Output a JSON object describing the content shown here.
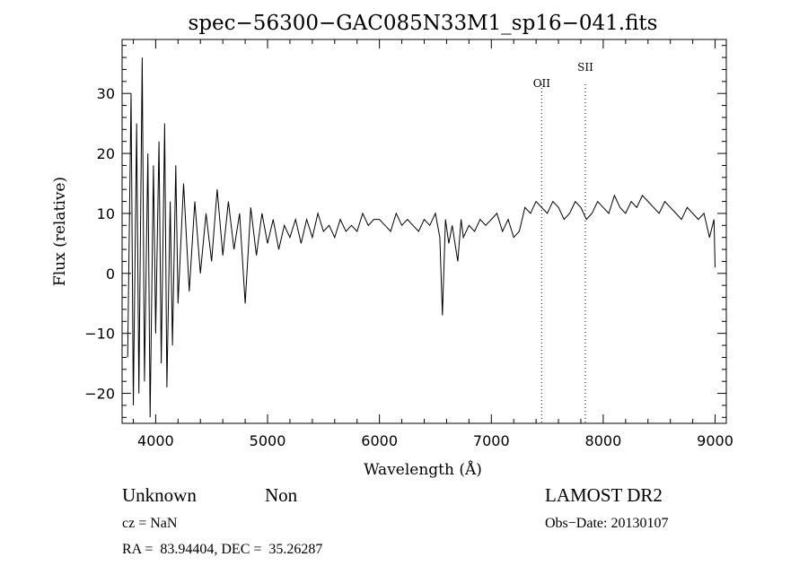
{
  "chart_data": {
    "type": "line",
    "title": "spec−56300−GAC085N33M1_sp16−041.fits",
    "xlabel": "Wavelength (Å)",
    "ylabel": "Flux (relative)",
    "xlim": [
      3700,
      9100
    ],
    "ylim": [
      -25,
      39
    ],
    "xticks": [
      4000,
      5000,
      6000,
      7000,
      8000,
      9000
    ],
    "xtick_labels": [
      "4000",
      "5000",
      "6000",
      "7000",
      "8000",
      "9000"
    ],
    "yticks": [
      -20,
      -10,
      0,
      10,
      20,
      30
    ],
    "ytick_labels": [
      "−20",
      "−10",
      "0",
      "10",
      "20",
      "30"
    ],
    "grid": false,
    "series": [
      {
        "x": [
          3750,
          3780,
          3800,
          3830,
          3850,
          3880,
          3900,
          3930,
          3950,
          3980,
          4000,
          4030,
          4050,
          4080,
          4100,
          4130,
          4150,
          4180,
          4200,
          4250,
          4300,
          4350,
          4400,
          4450,
          4500,
          4550,
          4600,
          4650,
          4700,
          4750,
          4800,
          4850,
          4900,
          4950,
          5000,
          5050,
          5100,
          5150,
          5200,
          5250,
          5300,
          5350,
          5400,
          5450,
          5500,
          5550,
          5600,
          5650,
          5700,
          5750,
          5800,
          5850,
          5900,
          5950,
          6000,
          6050,
          6100,
          6150,
          6200,
          6250,
          6300,
          6350,
          6400,
          6450,
          6500,
          6540,
          6563,
          6590,
          6620,
          6650,
          6700,
          6730,
          6750,
          6800,
          6850,
          6900,
          6950,
          7000,
          7050,
          7100,
          7150,
          7200,
          7250,
          7300,
          7350,
          7400,
          7450,
          7500,
          7550,
          7600,
          7650,
          7700,
          7750,
          7800,
          7850,
          7900,
          7950,
          8000,
          8050,
          8100,
          8150,
          8200,
          8250,
          8300,
          8350,
          8400,
          8450,
          8500,
          8550,
          8600,
          8650,
          8700,
          8750,
          8800,
          8850,
          8900,
          8950,
          8990,
          9000
        ],
        "y": [
          -14,
          30,
          -22,
          25,
          -20,
          36,
          -18,
          20,
          -24,
          18,
          -10,
          22,
          -15,
          25,
          -19,
          12,
          -12,
          18,
          -5,
          15,
          -3,
          12,
          0,
          10,
          2,
          14,
          3,
          12,
          4,
          10,
          -5,
          11,
          3,
          10,
          5,
          9,
          4,
          8,
          6,
          9,
          5,
          9,
          6,
          10,
          7,
          8,
          6,
          9,
          7,
          8,
          7,
          10,
          8,
          9,
          9,
          8,
          7,
          10,
          8,
          9,
          8,
          7,
          9,
          8,
          10,
          6,
          -7,
          9,
          5,
          8,
          2,
          9,
          6,
          8,
          7,
          9,
          8,
          9,
          10,
          7,
          9,
          6,
          7,
          11,
          10,
          12,
          11,
          10,
          12,
          11,
          9,
          10,
          12,
          11,
          9,
          10,
          12,
          11,
          10,
          13,
          11,
          10,
          12,
          11,
          13,
          12,
          11,
          10,
          12,
          11,
          10,
          9,
          11,
          10,
          9,
          10,
          6,
          9,
          1
        ]
      }
    ],
    "annotations": [
      {
        "text": "OII",
        "x": 7450
      },
      {
        "text": "SII",
        "x": 7840
      }
    ]
  },
  "info": {
    "object_class": "Unknown",
    "subclass": "Non",
    "survey": "LAMOST DR2",
    "cz": "cz = NaN",
    "obs_date": "Obs−Date: 20130107",
    "coords": "RA =  83.94404, DEC =  35.26287"
  }
}
